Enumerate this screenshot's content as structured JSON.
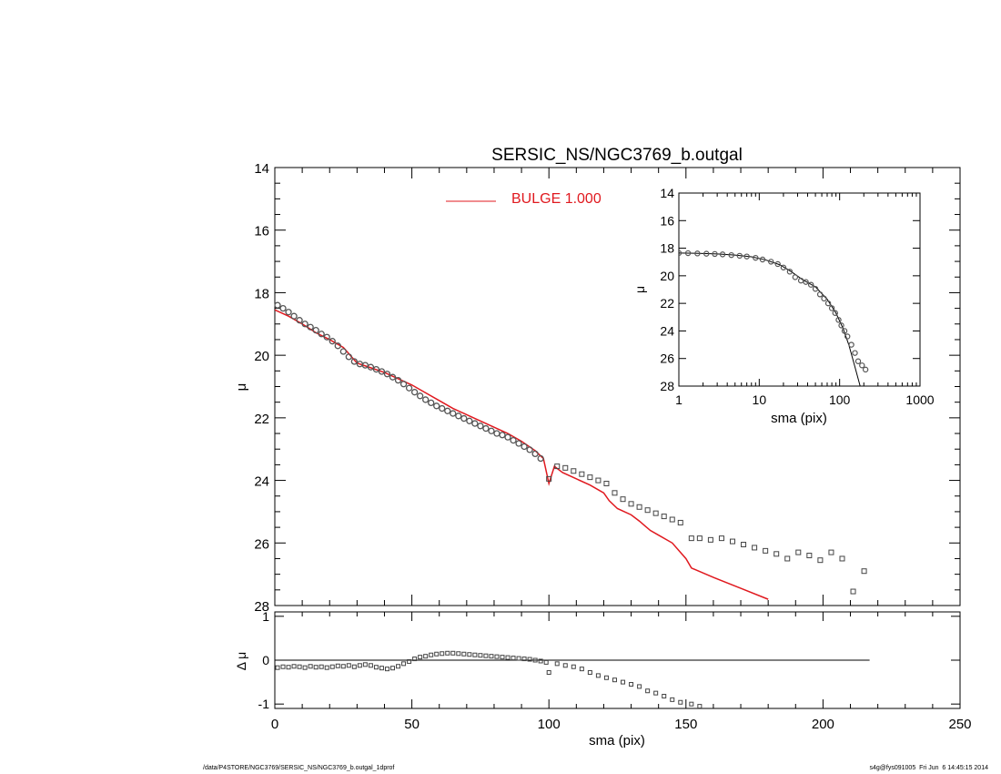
{
  "chart_data": [
    {
      "id": "main",
      "type": "scatter",
      "title": "SERSIC_NS/NGC3769_b.outgal",
      "ylabel": "μ",
      "xlim": [
        0,
        250
      ],
      "ylim": [
        28,
        14
      ],
      "y_inverted": true,
      "yticks": [
        14,
        16,
        18,
        20,
        22,
        24,
        26,
        28
      ],
      "legend": {
        "placement": "top-center",
        "entries": [
          {
            "label": "BULGE  1.000",
            "color": "#e0191f"
          }
        ]
      },
      "series": [
        {
          "name": "BULGE  1.000",
          "kind": "line",
          "color": "#e0191f",
          "x": [
            0,
            5,
            10,
            15,
            20,
            25,
            28,
            30,
            35,
            40,
            45,
            50,
            55,
            60,
            65,
            70,
            75,
            80,
            85,
            90,
            95,
            98,
            100,
            102,
            105,
            110,
            115,
            120,
            122,
            125,
            130,
            133,
            135,
            137,
            140,
            145,
            148,
            150,
            152,
            160,
            170,
            180
          ],
          "y": [
            18.55,
            18.75,
            19.0,
            19.28,
            19.5,
            19.75,
            20.05,
            20.25,
            20.4,
            20.55,
            20.75,
            20.95,
            21.2,
            21.45,
            21.7,
            21.9,
            22.1,
            22.3,
            22.5,
            22.75,
            23.05,
            23.3,
            24.1,
            23.55,
            23.75,
            23.95,
            24.15,
            24.4,
            24.65,
            24.9,
            25.1,
            25.3,
            25.45,
            25.6,
            25.75,
            26.0,
            26.3,
            26.5,
            26.8,
            27.1,
            27.45,
            27.8
          ]
        },
        {
          "name": "",
          "kind": "points",
          "marker": "circle",
          "color": "#555555",
          "x": [
            1,
            3,
            5,
            7,
            9,
            11,
            13,
            15,
            17,
            19,
            21,
            23,
            25,
            27,
            29,
            31,
            33,
            35,
            37,
            39,
            41,
            43,
            45,
            47,
            49,
            51,
            53,
            55,
            57,
            59,
            61,
            63,
            65,
            67,
            69,
            71,
            73,
            75,
            77,
            79,
            81,
            83,
            85,
            87,
            89,
            91,
            93,
            95,
            97
          ],
          "y": [
            18.4,
            18.5,
            18.62,
            18.75,
            18.88,
            19.0,
            19.1,
            19.2,
            19.32,
            19.42,
            19.55,
            19.7,
            19.88,
            20.05,
            20.2,
            20.28,
            20.32,
            20.38,
            20.45,
            20.52,
            20.6,
            20.7,
            20.8,
            20.92,
            21.05,
            21.18,
            21.3,
            21.42,
            21.52,
            21.62,
            21.7,
            21.78,
            21.86,
            21.94,
            22.02,
            22.1,
            22.18,
            22.26,
            22.34,
            22.42,
            22.5,
            22.55,
            22.62,
            22.72,
            22.82,
            22.92,
            23.02,
            23.15,
            23.3
          ]
        },
        {
          "name": "",
          "kind": "points",
          "marker": "square",
          "color": "#444444",
          "x": [
            100,
            103,
            106,
            109,
            112,
            115,
            118,
            121,
            124,
            127,
            130,
            133,
            136,
            139,
            142,
            145,
            148,
            152,
            155,
            159,
            163,
            167,
            171,
            175,
            179,
            183,
            187,
            191,
            195,
            199,
            203,
            207,
            211,
            215
          ],
          "y": [
            23.95,
            23.55,
            23.6,
            23.7,
            23.8,
            23.9,
            24.0,
            24.1,
            24.4,
            24.6,
            24.75,
            24.85,
            24.95,
            25.05,
            25.15,
            25.25,
            25.35,
            25.85,
            25.85,
            25.9,
            25.85,
            25.95,
            26.05,
            26.15,
            26.25,
            26.35,
            26.5,
            26.3,
            26.4,
            26.55,
            26.3,
            26.5,
            27.55,
            26.9
          ]
        }
      ]
    },
    {
      "id": "inset",
      "type": "scatter",
      "xscale": "log",
      "xlabel": "sma (pix)",
      "ylabel": "μ",
      "xlim": [
        1,
        1000
      ],
      "ylim": [
        28,
        14
      ],
      "y_inverted": true,
      "xticks": [
        1,
        10,
        100,
        1000
      ],
      "xtick_labels": [
        "1",
        "10",
        "100",
        "1000"
      ],
      "yticks": [
        14,
        16,
        18,
        20,
        22,
        24,
        26,
        28
      ],
      "series": [
        {
          "name": "",
          "kind": "line",
          "color": "#000000",
          "x": [
            1,
            2,
            3,
            5,
            8,
            12,
            18,
            25,
            35,
            50,
            70,
            90,
            110,
            130,
            150,
            180
          ],
          "y": [
            18.35,
            18.38,
            18.42,
            18.5,
            18.62,
            18.85,
            19.2,
            19.7,
            20.3,
            20.8,
            21.7,
            22.7,
            23.8,
            25.0,
            26.3,
            28.0
          ]
        },
        {
          "name": "",
          "kind": "points",
          "marker": "circle",
          "color": "#555555",
          "x": [
            1,
            1.3,
            1.7,
            2.2,
            2.8,
            3.5,
            4.5,
            5.7,
            7,
            9,
            11,
            14,
            17,
            20,
            24,
            28,
            33,
            38,
            44,
            50,
            57,
            64,
            72,
            80,
            88,
            97,
            105,
            115,
            125,
            140,
            155,
            170,
            190,
            210
          ],
          "y": [
            18.35,
            18.36,
            18.38,
            18.4,
            18.42,
            18.45,
            18.5,
            18.55,
            18.6,
            18.7,
            18.82,
            18.98,
            19.15,
            19.4,
            19.7,
            20.1,
            20.35,
            20.45,
            20.65,
            20.95,
            21.35,
            21.65,
            22.0,
            22.35,
            22.7,
            23.2,
            23.6,
            24.0,
            24.4,
            25.0,
            25.6,
            26.2,
            26.5,
            26.8
          ]
        }
      ]
    },
    {
      "id": "residual",
      "type": "scatter",
      "xlabel": "sma (pix)",
      "ylabel": "Δ μ",
      "xlim": [
        0,
        250
      ],
      "ylim": [
        -1.1,
        1.1
      ],
      "xticks": [
        0,
        50,
        100,
        150,
        200,
        250
      ],
      "yticks": [
        -1,
        0,
        1
      ],
      "zero_line": {
        "y": 0,
        "x_range": [
          0,
          217
        ]
      },
      "series": [
        {
          "name": "",
          "kind": "points",
          "marker": "square",
          "color": "#444444",
          "x": [
            1,
            3,
            5,
            7,
            9,
            11,
            13,
            15,
            17,
            19,
            21,
            23,
            25,
            27,
            29,
            31,
            33,
            35,
            37,
            39,
            41,
            43,
            45,
            47,
            49,
            51,
            53,
            55,
            57,
            59,
            61,
            63,
            65,
            67,
            69,
            71,
            73,
            75,
            77,
            79,
            81,
            83,
            85,
            87,
            89,
            91,
            93,
            95,
            97,
            99,
            100,
            103,
            106,
            109,
            112,
            115,
            118,
            121,
            124,
            127,
            130,
            133,
            136,
            139,
            142,
            145,
            148,
            152,
            155
          ],
          "y": [
            -0.17,
            -0.15,
            -0.16,
            -0.14,
            -0.15,
            -0.17,
            -0.14,
            -0.16,
            -0.15,
            -0.17,
            -0.15,
            -0.13,
            -0.14,
            -0.12,
            -0.15,
            -0.12,
            -0.1,
            -0.12,
            -0.16,
            -0.18,
            -0.2,
            -0.18,
            -0.14,
            -0.08,
            -0.03,
            0.03,
            0.07,
            0.09,
            0.12,
            0.14,
            0.15,
            0.16,
            0.16,
            0.15,
            0.14,
            0.13,
            0.12,
            0.11,
            0.1,
            0.09,
            0.08,
            0.07,
            0.06,
            0.05,
            0.04,
            0.03,
            0.02,
            0.0,
            -0.02,
            -0.05,
            -0.28,
            -0.08,
            -0.12,
            -0.15,
            -0.2,
            -0.28,
            -0.35,
            -0.4,
            -0.45,
            -0.5,
            -0.55,
            -0.6,
            -0.7,
            -0.75,
            -0.82,
            -0.9,
            -0.96,
            -1.0,
            -1.05
          ]
        }
      ]
    }
  ],
  "footer": {
    "left": "/data/P4STORE/NGC3769/SERSIC_NS/NGC3769_b.outgal_1dprof",
    "right": "s4g@fys091005  Fri Jun  6 14:45:15 2014"
  }
}
